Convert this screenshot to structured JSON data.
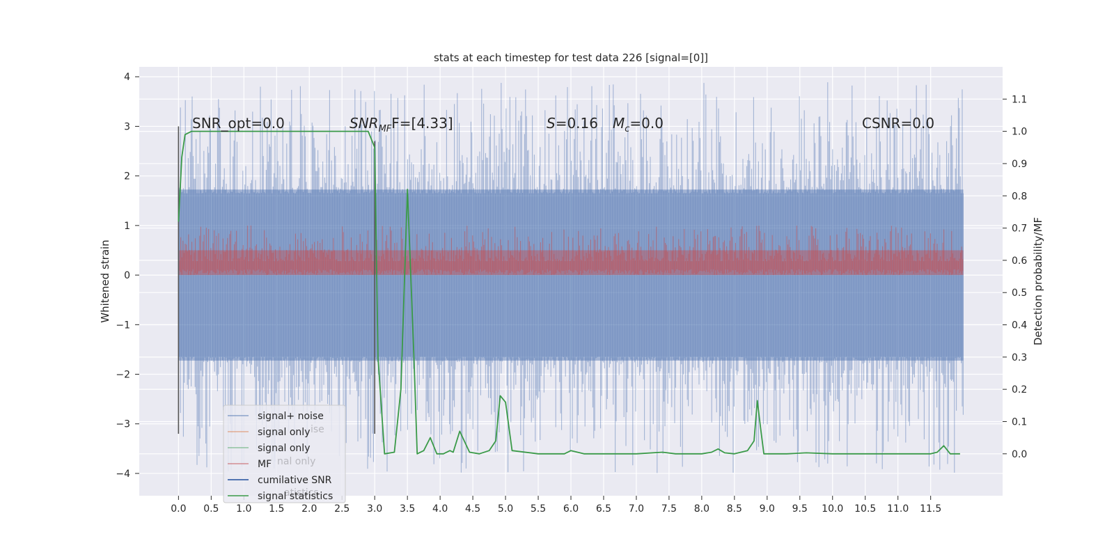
{
  "chart_data": {
    "type": "line",
    "title": "stats at each timestep for test data 226 [signal=[0]]",
    "xlabel": "",
    "ylabel": "Whitened strain",
    "y2label": "Detection probability/MF",
    "xlim": [
      -0.6,
      12.6
    ],
    "ylim": [
      -4.45,
      4.2
    ],
    "y2lim": [
      -0.13,
      1.2
    ],
    "x_ticks": [
      "0.0",
      "0.5",
      "1.0",
      "1.5",
      "2.0",
      "2.5",
      "3.0",
      "3.5",
      "4.0",
      "4.5",
      "5.0",
      "5.5",
      "6.0",
      "6.5",
      "7.0",
      "7.5",
      "8.0",
      "8.5",
      "9.0",
      "9.5",
      "10.0",
      "10.5",
      "11.0",
      "11.5"
    ],
    "y_ticks": [
      "4",
      "3",
      "2",
      "1",
      "0",
      "−1",
      "−2",
      "−3",
      "−4"
    ],
    "y2_ticks": [
      "1.1",
      "1.0",
      "0.9",
      "0.8",
      "0.7",
      "0.6",
      "0.5",
      "0.4",
      "0.3",
      "0.2",
      "0.1",
      "0.0"
    ],
    "grid": true,
    "legend_placement": "lower-left",
    "annotations": {
      "snr_opt": "SNR_opt=0.0",
      "snr_mf_main": "SNR",
      "snr_mf_sub": "MF",
      "snr_mf_rest": "F=[4.33]",
      "s_main": "S",
      "s_rest": "=0.16",
      "mc_main": "M",
      "mc_sub": "c",
      "mc_rest": "=0.0",
      "csnr": "CSNR=0.0"
    },
    "noise_envelope": {
      "x_range": [
        0.0,
        12.0
      ],
      "typical_range": [
        -1.5,
        1.5
      ],
      "peak_range": [
        -4.0,
        3.9
      ]
    },
    "mf_envelope": {
      "x_range": [
        0.0,
        12.0
      ],
      "typical_range": [
        0.0,
        0.5
      ],
      "peak": 1.0
    },
    "vertical_markers": [
      {
        "x": 0.0,
        "y_range": [
          -3.2,
          3.0
        ]
      },
      {
        "x": 3.0,
        "y_range": [
          -3.2,
          2.7
        ]
      }
    ],
    "series": [
      {
        "name": "signal+ noise",
        "color": "#4c72b0"
      },
      {
        "name": "signal only",
        "color": "#dd8452"
      },
      {
        "name": "signal only",
        "color": "#55a868"
      },
      {
        "name": "MF",
        "color": "#c44e52"
      },
      {
        "name": "cumilative SNR",
        "color": "#1f4e9c"
      },
      {
        "name": "signal statistics",
        "color": "#3a9a48",
        "axis": "right",
        "x": [
          0.0,
          0.05,
          0.1,
          0.2,
          0.5,
          1.0,
          1.5,
          2.0,
          2.5,
          2.9,
          3.0,
          3.05,
          3.15,
          3.3,
          3.4,
          3.5,
          3.6,
          3.65,
          3.75,
          3.85,
          3.95,
          4.05,
          4.15,
          4.2,
          4.3,
          4.45,
          4.6,
          4.75,
          4.85,
          4.92,
          5.0,
          5.1,
          5.5,
          5.9,
          6.0,
          6.2,
          6.5,
          7.0,
          7.4,
          7.6,
          8.0,
          8.15,
          8.25,
          8.35,
          8.5,
          8.7,
          8.8,
          8.85,
          8.9,
          8.95,
          9.3,
          9.6,
          10.0,
          10.6,
          11.0,
          11.5,
          11.6,
          11.7,
          11.8,
          11.95
        ],
        "values": [
          0.72,
          0.92,
          0.99,
          1.0,
          1.0,
          1.0,
          1.0,
          1.0,
          1.0,
          1.0,
          0.95,
          0.3,
          0.0,
          0.005,
          0.2,
          0.82,
          0.3,
          0.0,
          0.01,
          0.05,
          0.0,
          0.0,
          0.01,
          0.005,
          0.07,
          0.005,
          0.0,
          0.01,
          0.04,
          0.18,
          0.16,
          0.01,
          0.0,
          0.0,
          0.01,
          0.0,
          0.0,
          0.0,
          0.005,
          0.0,
          0.0,
          0.005,
          0.015,
          0.003,
          0.0,
          0.01,
          0.04,
          0.165,
          0.08,
          0.0,
          0.0,
          0.003,
          0.0,
          0.0,
          0.0,
          0.0,
          0.005,
          0.025,
          0.0,
          0.0
        ]
      }
    ]
  }
}
